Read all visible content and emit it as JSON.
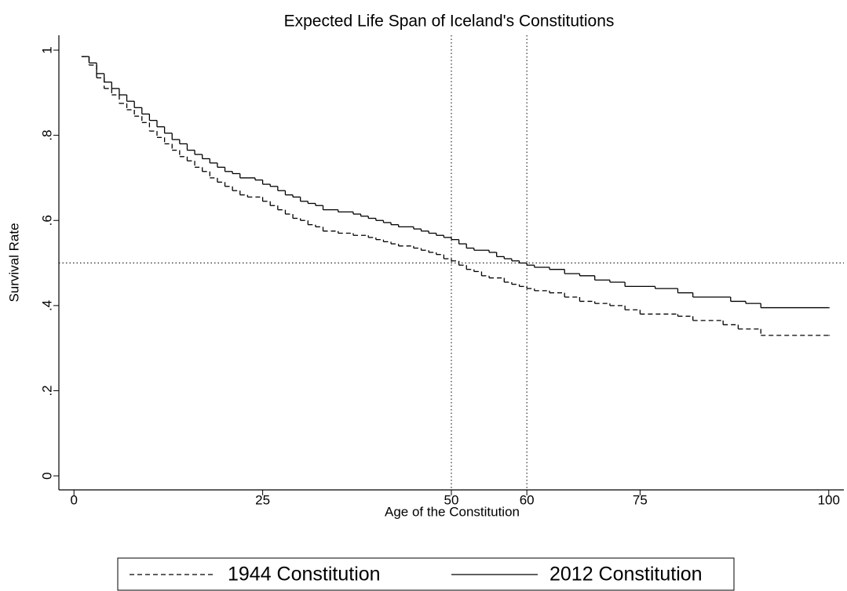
{
  "chart_data": {
    "type": "step",
    "title": "Expected Life Span of Iceland's Constitutions",
    "x_label": "Age of the Constitution",
    "y_label": "Survival Rate",
    "xlim": [
      -2,
      102
    ],
    "ylim": [
      -0.033,
      1.035
    ],
    "xticks": [
      0,
      25,
      50,
      60,
      75,
      100
    ],
    "yticks": [
      {
        "value": 0,
        "label": "0"
      },
      {
        "value": 0.2,
        "label": ".2"
      },
      {
        "value": 0.4,
        "label": ".4"
      },
      {
        "value": 0.6,
        "label": ".6"
      },
      {
        "value": 0.8,
        "label": ".8"
      },
      {
        "value": 1,
        "label": "1"
      }
    ],
    "hlines": [
      0.5
    ],
    "vlines": [
      50,
      60
    ],
    "legend": "bottom",
    "series": [
      {
        "name": "1944 Constitution",
        "color": "#000000",
        "dash": "dashed",
        "x": [
          1,
          2,
          3,
          4,
          5,
          6,
          7,
          8,
          9,
          10,
          11,
          12,
          13,
          14,
          15,
          16,
          17,
          18,
          19,
          20,
          21,
          22,
          23,
          25,
          26,
          27,
          28,
          29,
          30,
          31,
          32,
          33,
          35,
          37,
          39,
          40,
          41,
          42,
          43,
          45,
          46,
          47,
          48,
          49,
          50,
          51,
          52,
          53,
          54,
          55,
          57,
          58,
          59,
          60,
          61,
          63,
          65,
          67,
          69,
          71,
          73,
          75,
          80,
          82,
          86,
          88,
          91,
          100
        ],
        "values": [
          0.985,
          0.965,
          0.935,
          0.91,
          0.895,
          0.875,
          0.86,
          0.845,
          0.83,
          0.81,
          0.795,
          0.78,
          0.765,
          0.75,
          0.74,
          0.725,
          0.715,
          0.7,
          0.69,
          0.68,
          0.67,
          0.66,
          0.655,
          0.645,
          0.635,
          0.625,
          0.615,
          0.605,
          0.6,
          0.59,
          0.585,
          0.575,
          0.57,
          0.565,
          0.56,
          0.555,
          0.55,
          0.545,
          0.54,
          0.535,
          0.53,
          0.525,
          0.52,
          0.51,
          0.505,
          0.495,
          0.485,
          0.48,
          0.47,
          0.465,
          0.455,
          0.45,
          0.445,
          0.44,
          0.435,
          0.43,
          0.42,
          0.41,
          0.405,
          0.4,
          0.39,
          0.38,
          0.375,
          0.365,
          0.355,
          0.345,
          0.33,
          0.33
        ]
      },
      {
        "name": "2012 Constitution",
        "color": "#000000",
        "dash": "solid",
        "x": [
          1,
          2,
          3,
          4,
          5,
          6,
          7,
          8,
          9,
          10,
          11,
          12,
          13,
          14,
          15,
          16,
          17,
          18,
          19,
          20,
          21,
          22,
          24,
          25,
          26,
          27,
          28,
          29,
          30,
          31,
          32,
          33,
          35,
          37,
          38,
          39,
          40,
          41,
          42,
          43,
          45,
          46,
          47,
          48,
          49,
          50,
          51,
          52,
          53,
          55,
          56,
          57,
          58,
          59,
          60,
          61,
          63,
          65,
          67,
          69,
          71,
          73,
          77,
          80,
          82,
          87,
          89,
          91,
          100
        ],
        "values": [
          0.985,
          0.97,
          0.945,
          0.925,
          0.91,
          0.895,
          0.88,
          0.865,
          0.85,
          0.835,
          0.82,
          0.805,
          0.79,
          0.78,
          0.765,
          0.755,
          0.745,
          0.735,
          0.725,
          0.715,
          0.71,
          0.7,
          0.695,
          0.685,
          0.68,
          0.67,
          0.66,
          0.655,
          0.645,
          0.64,
          0.635,
          0.625,
          0.62,
          0.615,
          0.61,
          0.605,
          0.6,
          0.595,
          0.59,
          0.585,
          0.58,
          0.575,
          0.57,
          0.565,
          0.56,
          0.555,
          0.545,
          0.535,
          0.53,
          0.525,
          0.515,
          0.51,
          0.505,
          0.5,
          0.495,
          0.49,
          0.485,
          0.475,
          0.47,
          0.46,
          0.455,
          0.445,
          0.44,
          0.43,
          0.42,
          0.41,
          0.405,
          0.395,
          0.395
        ]
      }
    ]
  }
}
